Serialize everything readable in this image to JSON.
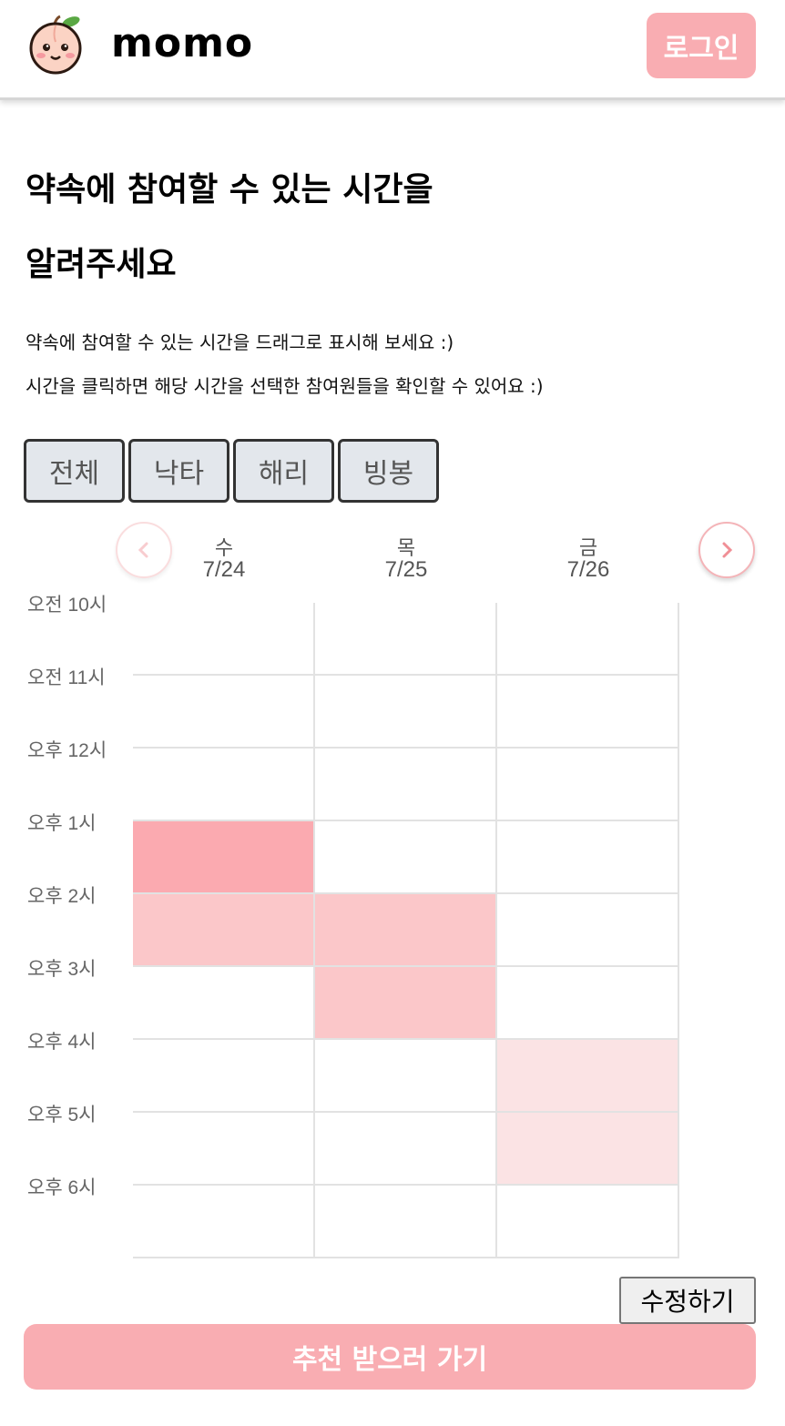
{
  "header": {
    "title": "momo",
    "login_label": "로그인",
    "logo_icon": "peach-face-icon"
  },
  "main": {
    "title_line1": "약속에 참여할 수 있는 시간을",
    "title_line2": "알려주세요",
    "desc1": "약속에 참여할 수 있는 시간을 드래그로 표시해 보세요 :)",
    "desc2": "시간을 클릭하면 해당 시간을 선택한 참여원들을 확인할 수 있어요 :)"
  },
  "tabs": [
    {
      "label": "전체",
      "active": true
    },
    {
      "label": "낙타",
      "active": false
    },
    {
      "label": "해리",
      "active": false
    },
    {
      "label": "빙봉",
      "active": false
    }
  ],
  "schedule": {
    "prev_icon": "chevron-left-icon",
    "next_icon": "chevron-right-icon",
    "days": [
      {
        "dow": "수",
        "date": "7/24"
      },
      {
        "dow": "목",
        "date": "7/25"
      },
      {
        "dow": "금",
        "date": "7/26"
      }
    ],
    "times": [
      "오전 10시",
      "오전 11시",
      "오후 12시",
      "오후 1시",
      "오후 2시",
      "오후 3시",
      "오후 4시",
      "오후 5시",
      "오후 6시"
    ],
    "availability": [
      [
        0,
        0,
        0
      ],
      [
        0,
        0,
        0
      ],
      [
        0,
        0,
        0
      ],
      [
        3,
        0,
        0
      ],
      [
        2,
        2,
        0
      ],
      [
        0,
        2,
        0
      ],
      [
        0,
        0,
        1
      ],
      [
        0,
        0,
        1
      ],
      [
        0,
        0,
        0
      ]
    ],
    "level_colors": [
      "#ffffff",
      "#fbe3e4",
      "#fbc7c9",
      "#fbaab0"
    ]
  },
  "actions": {
    "edit_label": "수정하기",
    "recommend_label": "추천 받으러 가기"
  }
}
